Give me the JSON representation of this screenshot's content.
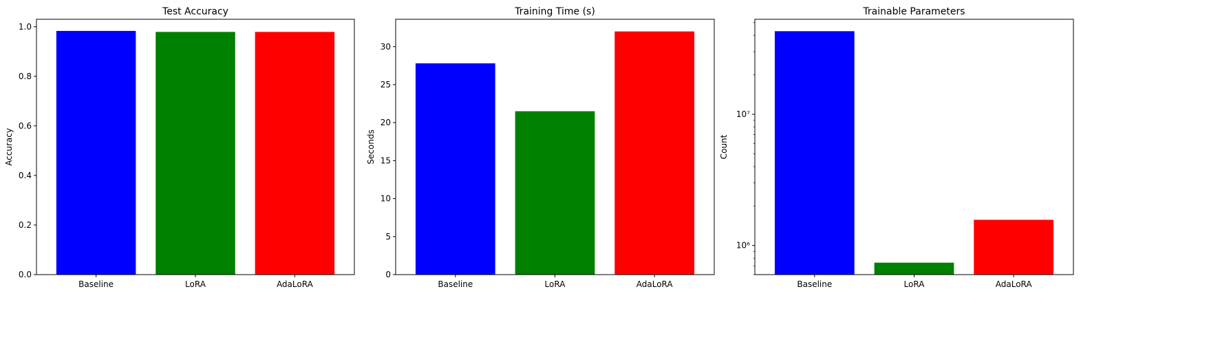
{
  "colors": {
    "Baseline": "#0000ff",
    "LoRA": "#008000",
    "AdaLoRA": "#ff0000",
    "axis": "#000000"
  },
  "chart_data": [
    {
      "type": "bar",
      "title": "Test Accuracy",
      "xlabel": "",
      "ylabel": "Accuracy",
      "categories": [
        "Baseline",
        "LoRA",
        "AdaLoRA"
      ],
      "values": [
        0.983,
        0.979,
        0.979
      ],
      "ylim": [
        0,
        1.03
      ],
      "yscale": "linear",
      "yticks": [
        0.0,
        0.2,
        0.4,
        0.6,
        0.8,
        1.0
      ],
      "ytick_labels": [
        "0.0",
        "0.2",
        "0.4",
        "0.6",
        "0.8",
        "1.0"
      ],
      "grid": false
    },
    {
      "type": "bar",
      "title": "Training Time (s)",
      "xlabel": "",
      "ylabel": "Seconds",
      "categories": [
        "Baseline",
        "LoRA",
        "AdaLoRA"
      ],
      "values": [
        27.8,
        21.5,
        32.0
      ],
      "ylim": [
        0,
        33.6
      ],
      "yscale": "linear",
      "yticks": [
        0,
        5,
        10,
        15,
        20,
        25,
        30
      ],
      "ytick_labels": [
        "0",
        "5",
        "10",
        "15",
        "20",
        "25",
        "30"
      ],
      "grid": false
    },
    {
      "type": "bar",
      "title": "Trainable Parameters",
      "xlabel": "",
      "ylabel": "Count",
      "categories": [
        "Baseline",
        "LoRA",
        "AdaLoRA"
      ],
      "values": [
        43000000,
        740000,
        1570000
      ],
      "ylim": [
        600000,
        53000000
      ],
      "yscale": "log",
      "yticks": [
        1000000,
        10000000
      ],
      "ytick_labels": [
        "10⁶",
        "10⁷"
      ],
      "grid": false
    }
  ]
}
